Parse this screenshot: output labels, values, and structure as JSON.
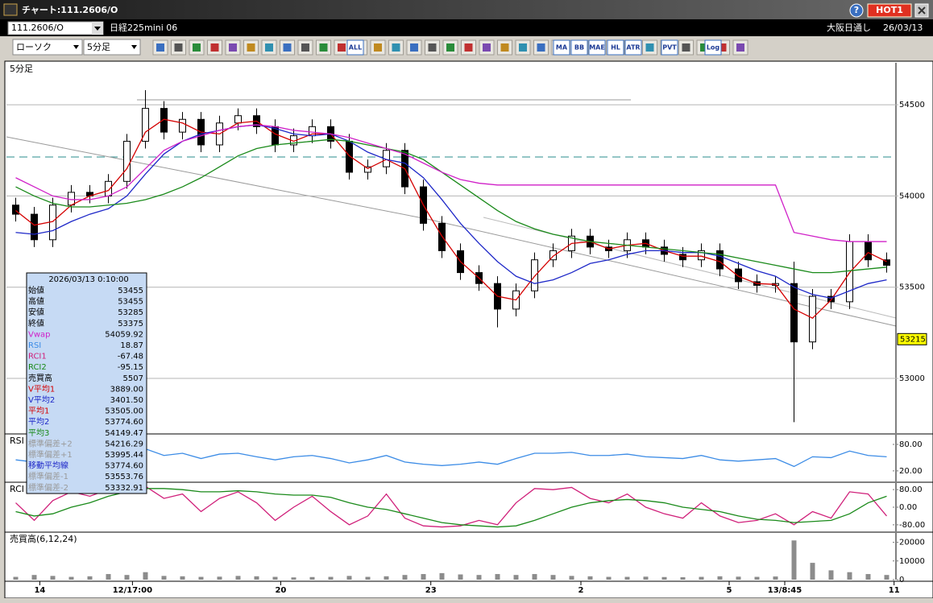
{
  "window": {
    "title": "チャート:111.2606/O",
    "badge": "HOT1",
    "help": "?"
  },
  "symbol_bar": {
    "code": "111.2606/O",
    "name": "日経225mini 06",
    "market": "大阪日通し",
    "date": "26/03/13"
  },
  "toolbar": {
    "chart_style": "ローソク",
    "period": "5分足",
    "icons": [
      "ALL",
      "MA",
      "BB",
      "MAE",
      "HL",
      "ATR",
      "PVT",
      "Log"
    ]
  },
  "chart_data": [
    {
      "type": "candlestick",
      "title": "5分足",
      "xlim": [
        -0.5,
        47.5
      ],
      "xticks": [
        {
          "value": 1.3,
          "label": "14"
        },
        {
          "value": 6.3,
          "label": "12/17:00"
        },
        {
          "value": 14.3,
          "label": "20"
        },
        {
          "value": 22.4,
          "label": "23"
        },
        {
          "value": 30.5,
          "label": "2"
        },
        {
          "value": 38.5,
          "label": "5"
        },
        {
          "value": 41.5,
          "label": "13/8:45"
        },
        {
          "value": 47.4,
          "label": "11"
        }
      ],
      "ylim": [
        52700,
        54730
      ],
      "yticks": [
        53000,
        53500,
        54000,
        54500
      ],
      "grid": true,
      "up_color": "#ffffff",
      "down_color": "#000000",
      "open": [
        53950,
        53900,
        53760,
        53950,
        54020,
        54000,
        54080,
        54300,
        54480,
        54350,
        54420,
        54280,
        54400,
        54440,
        54380,
        54280,
        54330,
        54380,
        54300,
        54130,
        54160,
        54250,
        54050,
        53850,
        53700,
        53580,
        53520,
        53380,
        53480,
        53650,
        53700,
        53780,
        53720,
        53700,
        53760,
        53720,
        53680,
        53650,
        53700,
        53600,
        53530,
        53510,
        53520,
        53200,
        53450,
        53420,
        53750,
        53650
      ],
      "high": [
        53990,
        53940,
        53990,
        54060,
        54060,
        54120,
        54340,
        54580,
        54520,
        54460,
        54460,
        54440,
        54480,
        54480,
        54420,
        54370,
        54420,
        54420,
        54340,
        54200,
        54290,
        54290,
        54090,
        53890,
        53740,
        53620,
        53560,
        53520,
        53690,
        53740,
        53820,
        53820,
        53760,
        53800,
        53800,
        53760,
        53720,
        53740,
        53740,
        53640,
        53570,
        53560,
        53640,
        53490,
        53490,
        53790,
        53790,
        53690
      ],
      "low": [
        53860,
        53720,
        53720,
        53910,
        53960,
        53960,
        54040,
        54260,
        54310,
        54310,
        54240,
        54240,
        54360,
        54340,
        54240,
        54240,
        54290,
        54260,
        54090,
        54090,
        54120,
        54010,
        53810,
        53660,
        53540,
        53480,
        53280,
        53340,
        53440,
        53610,
        53660,
        53680,
        53660,
        53660,
        53680,
        53640,
        53610,
        53610,
        53560,
        53490,
        53470,
        53470,
        52760,
        53160,
        53380,
        53380,
        53610,
        53580
      ],
      "close": [
        53900,
        53760,
        53950,
        54020,
        54000,
        54080,
        54300,
        54480,
        54350,
        54420,
        54280,
        54400,
        54440,
        54380,
        54280,
        54330,
        54380,
        54300,
        54130,
        54160,
        54250,
        54050,
        53850,
        53700,
        53580,
        53520,
        53380,
        53480,
        53650,
        53700,
        53780,
        53720,
        53700,
        53760,
        53720,
        53680,
        53650,
        53700,
        53600,
        53530,
        53510,
        53520,
        53200,
        53450,
        53420,
        53750,
        53650,
        53620
      ],
      "series": [
        {
          "color": "#d40000",
          "values": [
            53920,
            53840,
            53860,
            53950,
            54000,
            54030,
            54150,
            54350,
            54420,
            54400,
            54350,
            54340,
            54400,
            54410,
            54340,
            54300,
            54340,
            54340,
            54220,
            54150,
            54200,
            54150,
            53950,
            53780,
            53640,
            53550,
            53450,
            53430,
            53560,
            53670,
            53740,
            53750,
            53710,
            53730,
            53740,
            53700,
            53670,
            53670,
            53640,
            53560,
            53520,
            53515,
            53380,
            53330,
            53430,
            53580,
            53690,
            53640
          ]
        },
        {
          "color": "#1e28c8",
          "values": [
            53800,
            53790,
            53810,
            53860,
            53900,
            53930,
            54000,
            54120,
            54230,
            54300,
            54340,
            54360,
            54380,
            54390,
            54370,
            54340,
            54330,
            54340,
            54300,
            54240,
            54200,
            54180,
            54100,
            53980,
            53850,
            53740,
            53640,
            53560,
            53520,
            53540,
            53580,
            53630,
            53650,
            53680,
            53700,
            53700,
            53690,
            53690,
            53670,
            53630,
            53590,
            53560,
            53500,
            53460,
            53440,
            53480,
            53520,
            53540
          ]
        },
        {
          "color": "#1a8a1a",
          "values": [
            54050,
            54000,
            53960,
            53940,
            53940,
            53950,
            53960,
            53980,
            54010,
            54050,
            54100,
            54160,
            54220,
            54260,
            54280,
            54290,
            54300,
            54310,
            54300,
            54280,
            54260,
            54240,
            54200,
            54130,
            54060,
            53990,
            53920,
            53860,
            53820,
            53790,
            53770,
            53750,
            53740,
            53730,
            53720,
            53710,
            53700,
            53690,
            53680,
            53660,
            53640,
            53620,
            53600,
            53580,
            53580,
            53590,
            53600,
            53610
          ]
        },
        {
          "color": "#d020c8",
          "values": [
            54100,
            54050,
            54000,
            53980,
            53980,
            54000,
            54050,
            54150,
            54250,
            54300,
            54330,
            54360,
            54380,
            54390,
            54380,
            54360,
            54350,
            54340,
            54320,
            54290,
            54260,
            54230,
            54180,
            54130,
            54090,
            54070,
            54060,
            54060,
            54060,
            54060,
            54060,
            54060,
            54060,
            54060,
            54060,
            54060,
            54060,
            54060,
            54060,
            54060,
            54060,
            54060,
            53800,
            53780,
            53760,
            53750,
            53750,
            53750
          ]
        }
      ],
      "last_price": 53215,
      "last_price_color": "#ffff00"
    },
    {
      "type": "line",
      "title": "RSI",
      "ylim": [
        -4,
        102
      ],
      "yticks": [
        {
          "value": 80,
          "label": "80.00"
        },
        {
          "value": 20,
          "label": "20.00"
        }
      ],
      "series": [
        {
          "color": "#3c8ce6",
          "values": [
            45,
            40,
            55,
            60,
            55,
            58,
            65,
            70,
            55,
            60,
            48,
            58,
            60,
            52,
            45,
            52,
            55,
            48,
            38,
            45,
            55,
            40,
            35,
            32,
            35,
            40,
            35,
            48,
            60,
            60,
            62,
            55,
            55,
            58,
            52,
            50,
            48,
            55,
            45,
            42,
            45,
            48,
            30,
            52,
            50,
            65,
            55,
            52
          ]
        }
      ]
    },
    {
      "type": "line",
      "title": "RCI",
      "ylim": [
        -110,
        110
      ],
      "yticks": [
        {
          "value": 80,
          "label": "80.00"
        },
        {
          "value": 0,
          "label": "0.00"
        },
        {
          "value": -80,
          "label": "-80.00"
        }
      ],
      "series": [
        {
          "color": "#d0207a",
          "values": [
            20,
            -60,
            30,
            70,
            50,
            80,
            90,
            95,
            40,
            60,
            -20,
            40,
            70,
            20,
            -60,
            0,
            50,
            -20,
            -80,
            -40,
            60,
            -50,
            -85,
            -90,
            -85,
            -60,
            -80,
            20,
            85,
            80,
            90,
            40,
            20,
            60,
            0,
            -30,
            -50,
            20,
            -40,
            -70,
            -60,
            -30,
            -80,
            -20,
            -50,
            70,
            60,
            -40
          ]
        },
        {
          "color": "#1a8a1a",
          "values": [
            -20,
            -40,
            -30,
            0,
            20,
            50,
            70,
            85,
            85,
            80,
            70,
            70,
            75,
            70,
            60,
            55,
            55,
            45,
            20,
            0,
            -10,
            -30,
            -50,
            -70,
            -80,
            -85,
            -90,
            -85,
            -60,
            -30,
            0,
            20,
            30,
            35,
            30,
            20,
            0,
            -10,
            -20,
            -40,
            -55,
            -60,
            -70,
            -65,
            -60,
            -30,
            20,
            50
          ]
        }
      ]
    },
    {
      "type": "bar",
      "title": "売買高(6,12,24)",
      "ylim": [
        0,
        25000
      ],
      "yticks": [
        20000,
        10000,
        0
      ],
      "color": "#8c8c8c",
      "values": [
        1500,
        2500,
        2000,
        1500,
        1800,
        3000,
        2500,
        4000,
        2000,
        1800,
        1500,
        1600,
        2000,
        1800,
        1500,
        1200,
        1400,
        1500,
        2000,
        1500,
        1800,
        2500,
        3000,
        3500,
        2800,
        2500,
        3000,
        2500,
        3000,
        2500,
        2000,
        1800,
        1500,
        1500,
        1600,
        1400,
        1300,
        1500,
        1800,
        1600,
        1500,
        1700,
        21000,
        9000,
        5000,
        4000,
        3000,
        2500
      ]
    }
  ],
  "info_panel": {
    "header": "2026/03/13 0:10:00",
    "rows": [
      {
        "label": "始値",
        "value": "53455",
        "color": "#000000"
      },
      {
        "label": "高値",
        "value": "53455",
        "color": "#000000"
      },
      {
        "label": "安値",
        "value": "53285",
        "color": "#000000"
      },
      {
        "label": "終値",
        "value": "53375",
        "color": "#000000"
      },
      {
        "label": "Vwap",
        "value": "54059.92",
        "color": "#d020c8"
      },
      {
        "label": "RSI",
        "value": "18.87",
        "color": "#3c8ce6"
      },
      {
        "label": "RCI1",
        "value": "-67.48",
        "color": "#d0207a"
      },
      {
        "label": "RCI2",
        "value": "-95.15",
        "color": "#1a8a1a"
      },
      {
        "label": "売買高",
        "value": "5507",
        "color": "#000000"
      },
      {
        "label": "V平均1",
        "value": "3889.00",
        "color": "#d40000"
      },
      {
        "label": "V平均2",
        "value": "3401.50",
        "color": "#1e28c8"
      },
      {
        "label": "平均1",
        "value": "53505.00",
        "color": "#d40000"
      },
      {
        "label": "平均2",
        "value": "53774.60",
        "color": "#1e28c8"
      },
      {
        "label": "平均3",
        "value": "54149.47",
        "color": "#1a8a1a"
      },
      {
        "label": "標準偏差+2",
        "value": "54216.29",
        "color": "#9a9a9a"
      },
      {
        "label": "標準偏差+1",
        "value": "53995.44",
        "color": "#9a9a9a"
      },
      {
        "label": "移動平均線",
        "value": "53774.60",
        "color": "#1e28c8"
      },
      {
        "label": "標準偏差-1",
        "value": "53553.76",
        "color": "#9a9a9a"
      },
      {
        "label": "標準偏差-2",
        "value": "53332.91",
        "color": "#9a9a9a"
      }
    ]
  }
}
